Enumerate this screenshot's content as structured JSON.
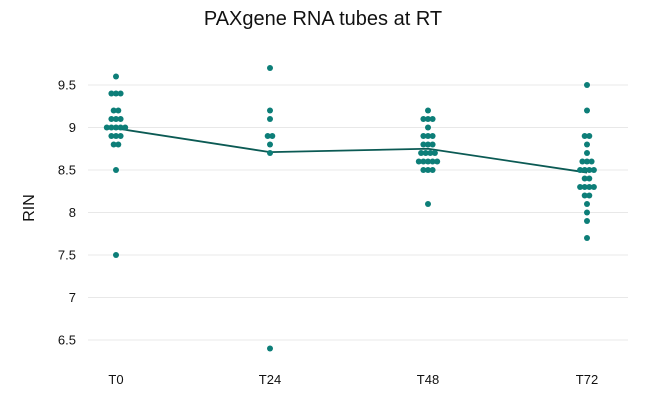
{
  "chart_data": {
    "type": "scatter",
    "title": "PAXgene RNA tubes at RT",
    "xlabel": "",
    "ylabel": "RIN",
    "categories": [
      "T0",
      "T24",
      "T48",
      "T72"
    ],
    "y_ticks": [
      "6.5",
      "7",
      "7.5",
      "8",
      "8.5",
      "9",
      "9.5"
    ],
    "ylim": [
      6.35,
      9.75
    ],
    "grid": "horizontal",
    "colors": {
      "points": "#0d7e78",
      "mean_line": "#0b5a54"
    },
    "series": [
      {
        "category": "T0",
        "values": [
          9.6,
          9.4,
          9.4,
          9.4,
          9.2,
          9.2,
          9.1,
          9.1,
          9.1,
          9.0,
          9.0,
          9.0,
          9.0,
          9.0,
          8.9,
          8.9,
          8.9,
          8.8,
          8.8,
          8.5,
          7.5
        ]
      },
      {
        "category": "T24",
        "values": [
          9.7,
          9.2,
          9.1,
          8.9,
          8.9,
          8.8,
          8.7,
          6.4
        ]
      },
      {
        "category": "T48",
        "values": [
          9.2,
          9.1,
          9.1,
          9.1,
          9.0,
          8.9,
          8.9,
          8.9,
          8.8,
          8.8,
          8.8,
          8.7,
          8.7,
          8.7,
          8.7,
          8.6,
          8.6,
          8.6,
          8.6,
          8.6,
          8.5,
          8.5,
          8.5,
          8.1
        ]
      },
      {
        "category": "T72",
        "values": [
          9.5,
          9.2,
          8.9,
          8.9,
          8.8,
          8.7,
          8.6,
          8.6,
          8.6,
          8.5,
          8.5,
          8.5,
          8.5,
          8.4,
          8.4,
          8.3,
          8.3,
          8.3,
          8.3,
          8.2,
          8.2,
          8.1,
          8.0,
          7.9,
          7.7
        ]
      }
    ],
    "mean_line": {
      "values": [
        8.99,
        8.71,
        8.75,
        8.47
      ]
    }
  }
}
